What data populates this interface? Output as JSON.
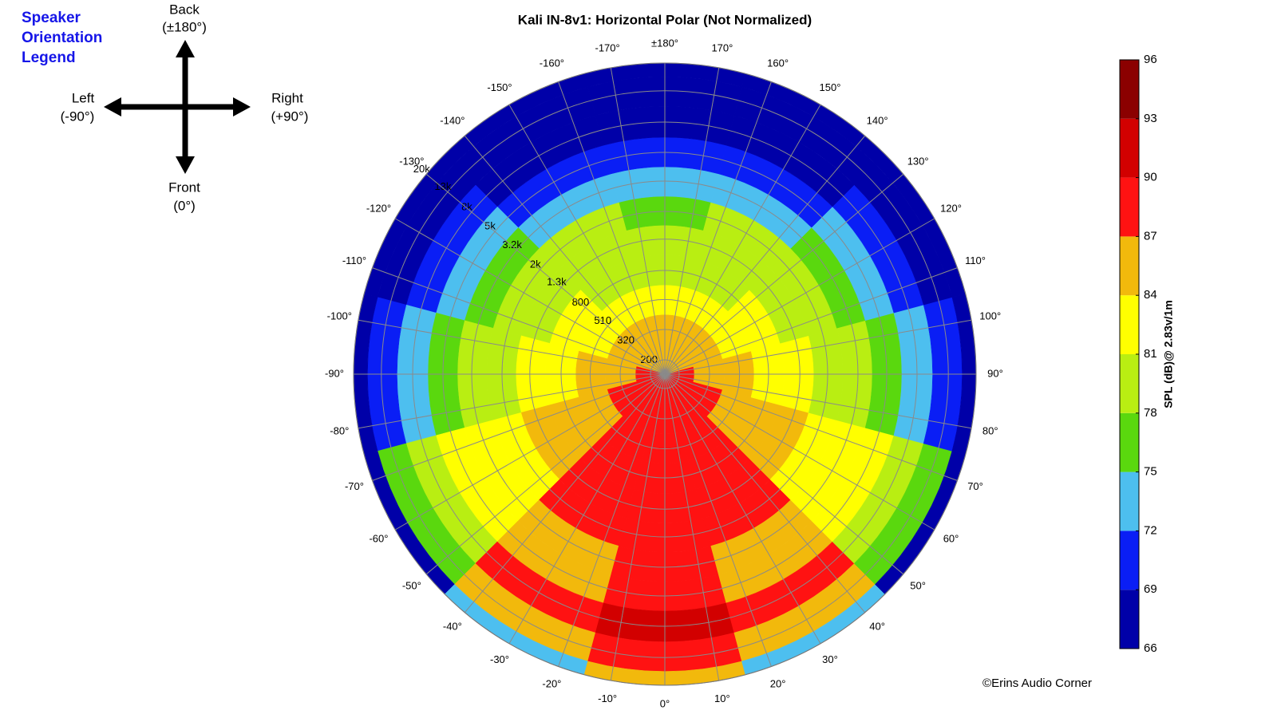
{
  "chart_data": {
    "type": "polar-contour",
    "title": "Kali IN-8v1: Horizontal Polar (Not Normalized)",
    "theta": [
      -180,
      -150,
      -120,
      -90,
      -60,
      -30,
      0,
      30,
      60,
      90,
      120,
      150
    ],
    "frequencies": [
      200,
      320,
      510,
      800,
      1300,
      2000,
      3200,
      5000,
      8000,
      13000,
      20000
    ],
    "spl": [
      [
        86,
        86,
        86,
        87,
        88,
        88,
        88,
        88,
        88,
        87,
        86,
        86
      ],
      [
        84,
        84,
        85,
        86,
        87,
        88,
        88,
        88,
        87,
        86,
        85,
        84
      ],
      [
        82,
        82,
        83,
        85,
        86,
        88,
        89,
        88,
        86,
        85,
        83,
        82
      ],
      [
        80,
        80,
        82,
        83,
        85,
        88,
        88,
        88,
        85,
        83,
        82,
        80
      ],
      [
        78,
        79,
        79,
        82,
        85,
        88,
        88,
        88,
        85,
        82,
        79,
        79
      ],
      [
        77,
        78,
        78,
        80,
        83,
        88,
        88,
        88,
        83,
        80,
        78,
        78
      ],
      [
        74,
        74,
        77,
        78,
        82,
        86,
        89,
        86,
        82,
        78,
        77,
        74
      ],
      [
        70,
        71,
        74,
        77,
        82,
        86,
        88,
        86,
        82,
        77,
        74,
        71
      ],
      [
        67,
        68,
        71,
        74,
        80,
        88,
        91,
        88,
        80,
        74,
        71,
        68
      ],
      [
        67,
        67,
        68,
        70,
        76,
        86,
        89,
        86,
        76,
        70,
        68,
        67
      ],
      [
        67,
        67,
        67,
        67,
        67,
        72,
        85,
        72,
        67,
        67,
        67,
        67
      ]
    ],
    "rlim": [
      160,
      20000
    ],
    "log_r": true,
    "rticks": [
      200,
      320,
      510,
      800,
      {
        "value": 1300,
        "label": "1.3k"
      },
      {
        "value": 2000,
        "label": "2k"
      },
      {
        "value": 3200,
        "label": "3.2k"
      },
      {
        "value": 5000,
        "label": "5k"
      },
      {
        "value": 8000,
        "label": "8k"
      },
      {
        "value": 13000,
        "label": "13k"
      },
      {
        "value": 20000,
        "label": "20k"
      }
    ],
    "thetaticks": [
      {
        "value": 0,
        "label": "0°"
      },
      {
        "value": 10,
        "label": "10°"
      },
      {
        "value": 20,
        "label": "20°"
      },
      {
        "value": 30,
        "label": "30°"
      },
      {
        "value": 40,
        "label": "40°"
      },
      {
        "value": 50,
        "label": "50°"
      },
      {
        "value": 60,
        "label": "60°"
      },
      {
        "value": 70,
        "label": "70°"
      },
      {
        "value": 80,
        "label": "80°"
      },
      {
        "value": 90,
        "label": "90°"
      },
      {
        "value": 100,
        "label": "100°"
      },
      {
        "value": 110,
        "label": "110°"
      },
      {
        "value": 120,
        "label": "120°"
      },
      {
        "value": 130,
        "label": "130°"
      },
      {
        "value": 140,
        "label": "140°"
      },
      {
        "value": 150,
        "label": "150°"
      },
      {
        "value": 160,
        "label": "160°"
      },
      {
        "value": 170,
        "label": "170°"
      },
      {
        "value": 180,
        "label": "±180°"
      },
      {
        "value": -170,
        "label": "-170°"
      },
      {
        "value": -160,
        "label": "-160°"
      },
      {
        "value": -150,
        "label": "-150°"
      },
      {
        "value": -140,
        "label": "-140°"
      },
      {
        "value": -130,
        "label": "-130°"
      },
      {
        "value": -120,
        "label": "-120°"
      },
      {
        "value": -110,
        "label": "-110°"
      },
      {
        "value": -100,
        "label": "-100°"
      },
      {
        "value": -90,
        "label": "-90°"
      },
      {
        "value": -80,
        "label": "-80°"
      },
      {
        "value": -70,
        "label": "-70°"
      },
      {
        "value": -60,
        "label": "-60°"
      },
      {
        "value": -50,
        "label": "-50°"
      },
      {
        "value": -40,
        "label": "-40°"
      },
      {
        "value": -30,
        "label": "-30°"
      },
      {
        "value": -20,
        "label": "-20°"
      },
      {
        "value": -10,
        "label": "-10°"
      }
    ],
    "colorbar_label": "SPL (dB)@ 2.83v/1m",
    "cticks": [
      66,
      69,
      72,
      75,
      78,
      81,
      84,
      87,
      90,
      93,
      96
    ],
    "colors": [
      "#0000a8",
      "#0a1ef5",
      "#4dbfef",
      "#5ad80e",
      "#b9ee12",
      "#ffff00",
      "#f2b90c",
      "#ff1212",
      "#d20000",
      "#8b0000"
    ],
    "grid": true,
    "orientation_legend": {
      "title": [
        "Speaker",
        "Orientation",
        "Legend"
      ],
      "back": [
        "Back",
        "(±180°)"
      ],
      "left": [
        "Left",
        "(-90°)"
      ],
      "right": [
        "Right",
        "(+90°)"
      ],
      "front": [
        "Front",
        "(0°)"
      ]
    },
    "credit": "©Erins Audio Corner"
  }
}
